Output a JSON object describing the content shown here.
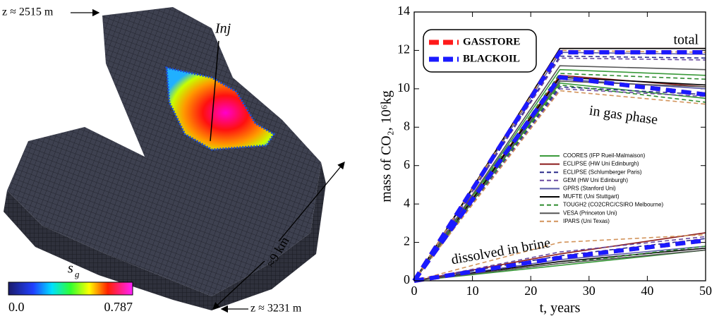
{
  "figure": {
    "depth_top": "z ≈ 2515 m",
    "depth_bottom": "z ≈ 3231 m",
    "injector": "Inj",
    "length": "≈9 km",
    "colorbar": {
      "label": "s",
      "label_sub": "g",
      "min": "0.0",
      "max": "0.787"
    }
  },
  "chart_data": {
    "type": "line",
    "xlabel": "t, years",
    "ylabel": "mass of CO₂, 10⁶kg",
    "annotations": [
      "total",
      "in gas phase",
      "dissolved in brine"
    ],
    "x": [
      0,
      25,
      50
    ],
    "xlim": [
      0,
      50
    ],
    "xticks": [
      0,
      10,
      20,
      30,
      40,
      50
    ],
    "ylim": [
      0,
      14
    ],
    "yticks": [
      0,
      2,
      4,
      6,
      8,
      10,
      12,
      14
    ],
    "series": [
      {
        "name": "GASSTORE",
        "color": "#ff1a1a",
        "dash": true,
        "thick": true,
        "total": [
          0,
          11.9,
          11.9
        ],
        "gas": [
          0,
          10.6,
          9.7
        ],
        "dissolved": [
          0,
          1.2,
          2.1
        ]
      },
      {
        "name": "BLACKOIL",
        "color": "#1a1aff",
        "dash": true,
        "thick": true,
        "total": [
          0,
          11.9,
          11.9
        ],
        "gas": [
          0,
          10.6,
          9.7
        ],
        "dissolved": [
          0,
          1.2,
          2.1
        ]
      },
      {
        "name": "COORES (IFP Rueil-Malmaison)",
        "color": "#3a9a3a",
        "dash": false,
        "thick": false,
        "total": [
          0,
          11.0,
          10.7
        ],
        "gas": [
          0,
          10.3,
          9.5
        ],
        "dissolved": [
          0,
          0.8,
          1.6
        ]
      },
      {
        "name": "ECLIPSE (HW Uni Edinburgh)",
        "color": "#8b1a1a",
        "dash": false,
        "thick": false,
        "total": [
          0,
          12.1,
          12.1
        ],
        "gas": [
          0,
          10.7,
          10.1
        ],
        "dissolved": [
          0,
          1.4,
          2.5
        ]
      },
      {
        "name": "ECLIPSE (Schlumberger Paris)",
        "color": "#2a2a8a",
        "dash": true,
        "thick": false,
        "total": [
          0,
          11.7,
          11.6
        ],
        "gas": [
          0,
          10.1,
          9.7
        ],
        "dissolved": [
          0,
          1.3,
          2.2
        ]
      },
      {
        "name": "GEM (HW Uni Edinburgh)",
        "color": "#6a4aa0",
        "dash": true,
        "thick": false,
        "total": [
          0,
          11.6,
          11.5
        ],
        "gas": [
          0,
          10.0,
          9.6
        ],
        "dissolved": [
          0,
          1.5,
          2.3
        ]
      },
      {
        "name": "GPRS (Stanford Uni)",
        "color": "#5a5aa8",
        "dash": false,
        "thick": false,
        "total": [
          0,
          11.9,
          11.8
        ],
        "gas": [
          0,
          10.5,
          10.0
        ],
        "dissolved": [
          0,
          1.1,
          1.8
        ]
      },
      {
        "name": "MUFTE (Uni Stuttgart)",
        "color": "#000000",
        "dash": false,
        "thick": false,
        "total": [
          0,
          12.1,
          12.1
        ],
        "gas": [
          0,
          10.6,
          10.2
        ],
        "dissolved": [
          0,
          1.0,
          1.7
        ]
      },
      {
        "name": "TOUGH2 (CO2CRC/CSIRO Melbourne)",
        "color": "#2e8b2e",
        "dash": true,
        "thick": false,
        "total": [
          0,
          10.8,
          10.5
        ],
        "gas": [
          0,
          10.2,
          9.3
        ],
        "dissolved": [
          0,
          0.9,
          1.8
        ]
      },
      {
        "name": "VESA (Princeton Uni)",
        "color": "#555555",
        "dash": false,
        "thick": false,
        "total": [
          0,
          11.2,
          11.0
        ],
        "gas": [
          0,
          10.4,
          10.1
        ],
        "dissolved": [
          0,
          0.9,
          1.6
        ]
      },
      {
        "name": "IPARS (Uni Texas)",
        "color": "#d2935a",
        "dash": true,
        "thick": false,
        "total": [
          0,
          12.0,
          11.9
        ],
        "gas": [
          0,
          9.9,
          9.2
        ],
        "dissolved": [
          0,
          2.0,
          2.4
        ]
      }
    ]
  }
}
